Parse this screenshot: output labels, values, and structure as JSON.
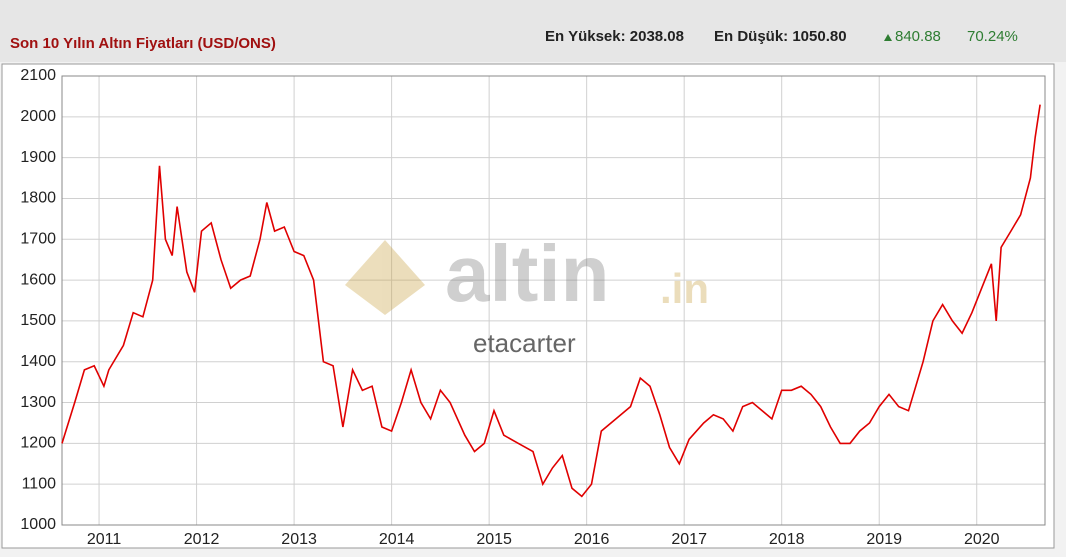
{
  "header": {
    "title": "Son 10 Yılın Altın Fiyatları (USD/ONS)",
    "high": "En Yüksek: 2038.08",
    "low": "En Düşük: 1050.80",
    "change": "840.88",
    "change_pct": "70.24%"
  },
  "watermark": {
    "brand": "altin",
    "suffix": ".in",
    "user": "etacarter"
  },
  "chart_data": {
    "type": "line",
    "color": "#e00000",
    "grid": true,
    "x": [
      2010.62,
      2010.75,
      2010.85,
      2010.95,
      2011.05,
      2011.1,
      2011.25,
      2011.35,
      2011.45,
      2011.55,
      2011.62,
      2011.68,
      2011.75,
      2011.8,
      2011.9,
      2011.98,
      2012.05,
      2012.15,
      2012.25,
      2012.35,
      2012.45,
      2012.55,
      2012.65,
      2012.72,
      2012.8,
      2012.9,
      2013.0,
      2013.1,
      2013.2,
      2013.3,
      2013.4,
      2013.5,
      2013.6,
      2013.7,
      2013.8,
      2013.9,
      2014.0,
      2014.1,
      2014.2,
      2014.3,
      2014.4,
      2014.5,
      2014.6,
      2014.75,
      2014.85,
      2014.95,
      2015.05,
      2015.15,
      2015.3,
      2015.45,
      2015.55,
      2015.65,
      2015.75,
      2015.85,
      2015.95,
      2016.05,
      2016.15,
      2016.3,
      2016.45,
      2016.55,
      2016.65,
      2016.75,
      2016.85,
      2016.95,
      2017.05,
      2017.2,
      2017.3,
      2017.4,
      2017.5,
      2017.6,
      2017.7,
      2017.8,
      2017.9,
      2018.0,
      2018.1,
      2018.2,
      2018.3,
      2018.4,
      2018.5,
      2018.6,
      2018.7,
      2018.8,
      2018.9,
      2019.0,
      2019.1,
      2019.2,
      2019.3,
      2019.45,
      2019.55,
      2019.65,
      2019.75,
      2019.85,
      2019.95,
      2020.05,
      2020.15,
      2020.2,
      2020.25,
      2020.35,
      2020.45,
      2020.55,
      2020.6,
      2020.65
    ],
    "values": [
      1200,
      1300,
      1380,
      1390,
      1340,
      1380,
      1440,
      1520,
      1510,
      1600,
      1880,
      1700,
      1660,
      1780,
      1620,
      1570,
      1720,
      1740,
      1650,
      1580,
      1600,
      1610,
      1700,
      1790,
      1720,
      1730,
      1670,
      1660,
      1600,
      1400,
      1390,
      1240,
      1380,
      1330,
      1340,
      1240,
      1230,
      1300,
      1380,
      1300,
      1260,
      1330,
      1300,
      1220,
      1180,
      1200,
      1280,
      1220,
      1200,
      1180,
      1100,
      1140,
      1170,
      1090,
      1070,
      1100,
      1230,
      1260,
      1290,
      1360,
      1340,
      1270,
      1190,
      1150,
      1210,
      1250,
      1270,
      1260,
      1230,
      1290,
      1300,
      1280,
      1260,
      1330,
      1330,
      1340,
      1320,
      1290,
      1240,
      1200,
      1200,
      1230,
      1250,
      1290,
      1320,
      1290,
      1280,
      1400,
      1500,
      1540,
      1500,
      1470,
      1520,
      1580,
      1640,
      1500,
      1680,
      1720,
      1760,
      1850,
      1950,
      2030
    ],
    "xlim": [
      2010.62,
      2020.7
    ],
    "xticks": [
      2011,
      2012,
      2013,
      2014,
      2015,
      2016,
      2017,
      2018,
      2019,
      2020
    ],
    "ylim": [
      1000,
      2100
    ],
    "yticks": [
      1000,
      1100,
      1200,
      1300,
      1400,
      1500,
      1600,
      1700,
      1800,
      1900,
      2000,
      2100
    ]
  }
}
